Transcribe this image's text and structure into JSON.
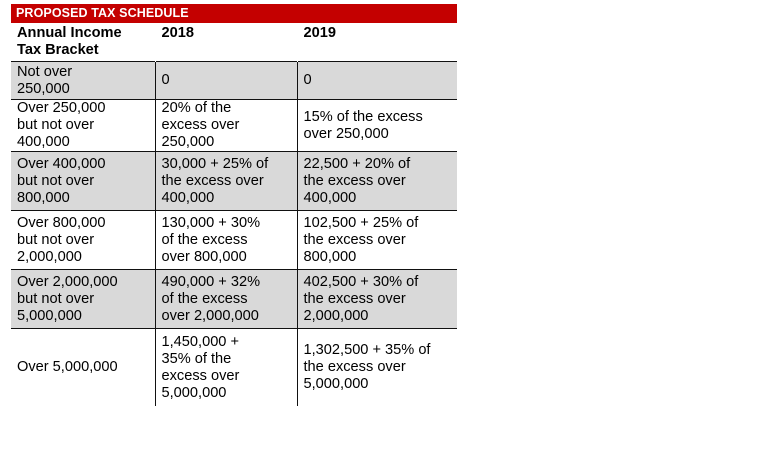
{
  "title": "PROPOSED TAX SCHEDULE",
  "headers": [
    "Annual Income\nTax Bracket",
    "2018",
    "2019"
  ],
  "rows": [
    [
      "Not over\n250,000",
      "0",
      "0"
    ],
    [
      "Over  250,000\nbut not over\n400,000",
      "20% of the\nexcess over\n250,000",
      "15% of the excess\nover 250,000"
    ],
    [
      "Over  400,000\nbut not over\n800,000",
      "30,000 + 25% of\nthe excess over\n400,000",
      "22,500 + 20% of\nthe excess over\n400,000"
    ],
    [
      "Over  800,000\nbut not over\n2,000,000",
      "130,000 + 30%\nof the excess\nover  800,000",
      "102,500 + 25% of\nthe excess over\n800,000"
    ],
    [
      "Over 2,000,000\nbut not over\n5,000,000",
      "490,000 + 32%\nof the excess\nover 2,000,000",
      "402,500 + 30% of\nthe excess over\n2,000,000"
    ],
    [
      "Over 5,000,000",
      "1,450,000 +\n35% of the\nexcess over\n5,000,000",
      "1,302,500 + 35% of\nthe excess over\n5,000,000"
    ]
  ],
  "colors": {
    "banner": "#c40000",
    "shaded_row": "#d9d9d9",
    "plain_row": "#ffffff"
  }
}
